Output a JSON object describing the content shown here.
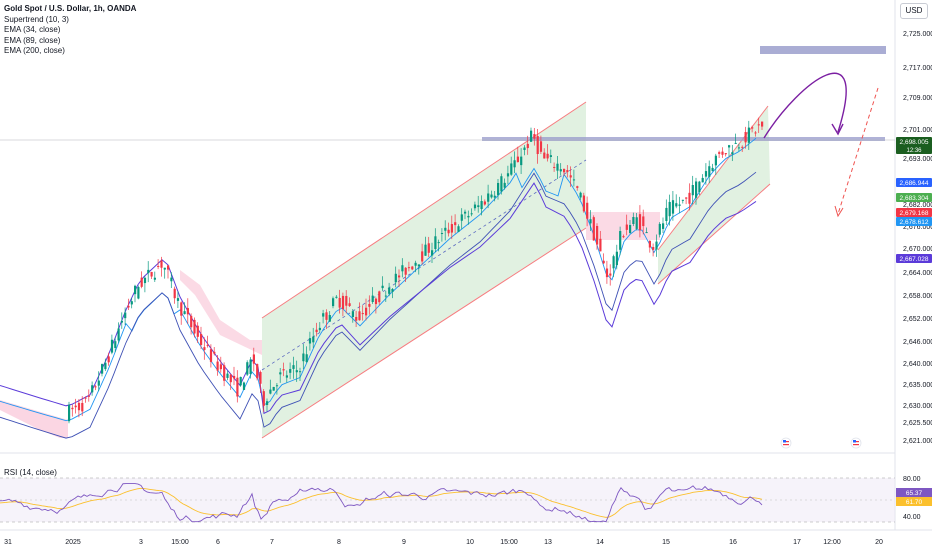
{
  "legend": {
    "title": "Gold Spot / U.S. Dollar, 1h, OANDA",
    "indicators": [
      "Supertrend (10, 3)",
      "EMA (34, close)",
      "EMA (89, close)",
      "EMA (200, close)"
    ]
  },
  "currency_button": "USD",
  "rsi_label": "RSI (14, close)",
  "colors": {
    "up": "#089981",
    "down": "#f23645",
    "channel_fill": "#c8e6c9",
    "channel_line": "#f77c80",
    "resistance": "#9598c9",
    "arrow": "#7b1fa2",
    "ema34": "#2196f3",
    "ema89": "#3f51b5",
    "ema200": "#5b3bd9",
    "supertrend_up": "#4caf50",
    "supertrend_down": "#f23645"
  },
  "chart_data": {
    "type": "candlestick",
    "title": "Gold Spot / U.S. Dollar, 1h, OANDA",
    "price_range": [
      2616,
      2730
    ],
    "y_ticks": [
      "2,725.000",
      "2,717.000",
      "2,709.000",
      "2,701.000",
      "2,693.000",
      "2,682.000",
      "2,676.000",
      "2,670.000",
      "2,664.000",
      "2,658.000",
      "2,652.000",
      "2,646.000",
      "2,640.000",
      "2,635.000",
      "2,630.000",
      "2,625.500",
      "2,621.000"
    ],
    "x_ticks": [
      "31",
      "2025",
      "3",
      "15:00",
      "6",
      "7",
      "8",
      "9",
      "10",
      "15:00",
      "13",
      "14",
      "15",
      "16",
      "17",
      "12:00",
      "20"
    ],
    "price_badges": [
      {
        "label": "2,698.005",
        "sub": "12:36",
        "color": "#1b5e20"
      },
      {
        "label": "2,686.944",
        "color": "#2962ff"
      },
      {
        "label": "2,683.304",
        "color": "#4caf50"
      },
      {
        "label": "2,679.168",
        "color": "#f23645"
      },
      {
        "label": "2,678.612",
        "color": "#2196f3"
      },
      {
        "label": "2,667.028",
        "color": "#5b3bd9"
      }
    ],
    "rsi": {
      "ticks": [
        "80.00",
        "40.00"
      ],
      "badges": [
        {
          "label": "65.37",
          "color": "#7e57c2"
        },
        {
          "label": "61.70",
          "color": "#fbc02d"
        }
      ]
    },
    "key_levels": {
      "resistance": 2699,
      "target_zone": 2722
    }
  }
}
